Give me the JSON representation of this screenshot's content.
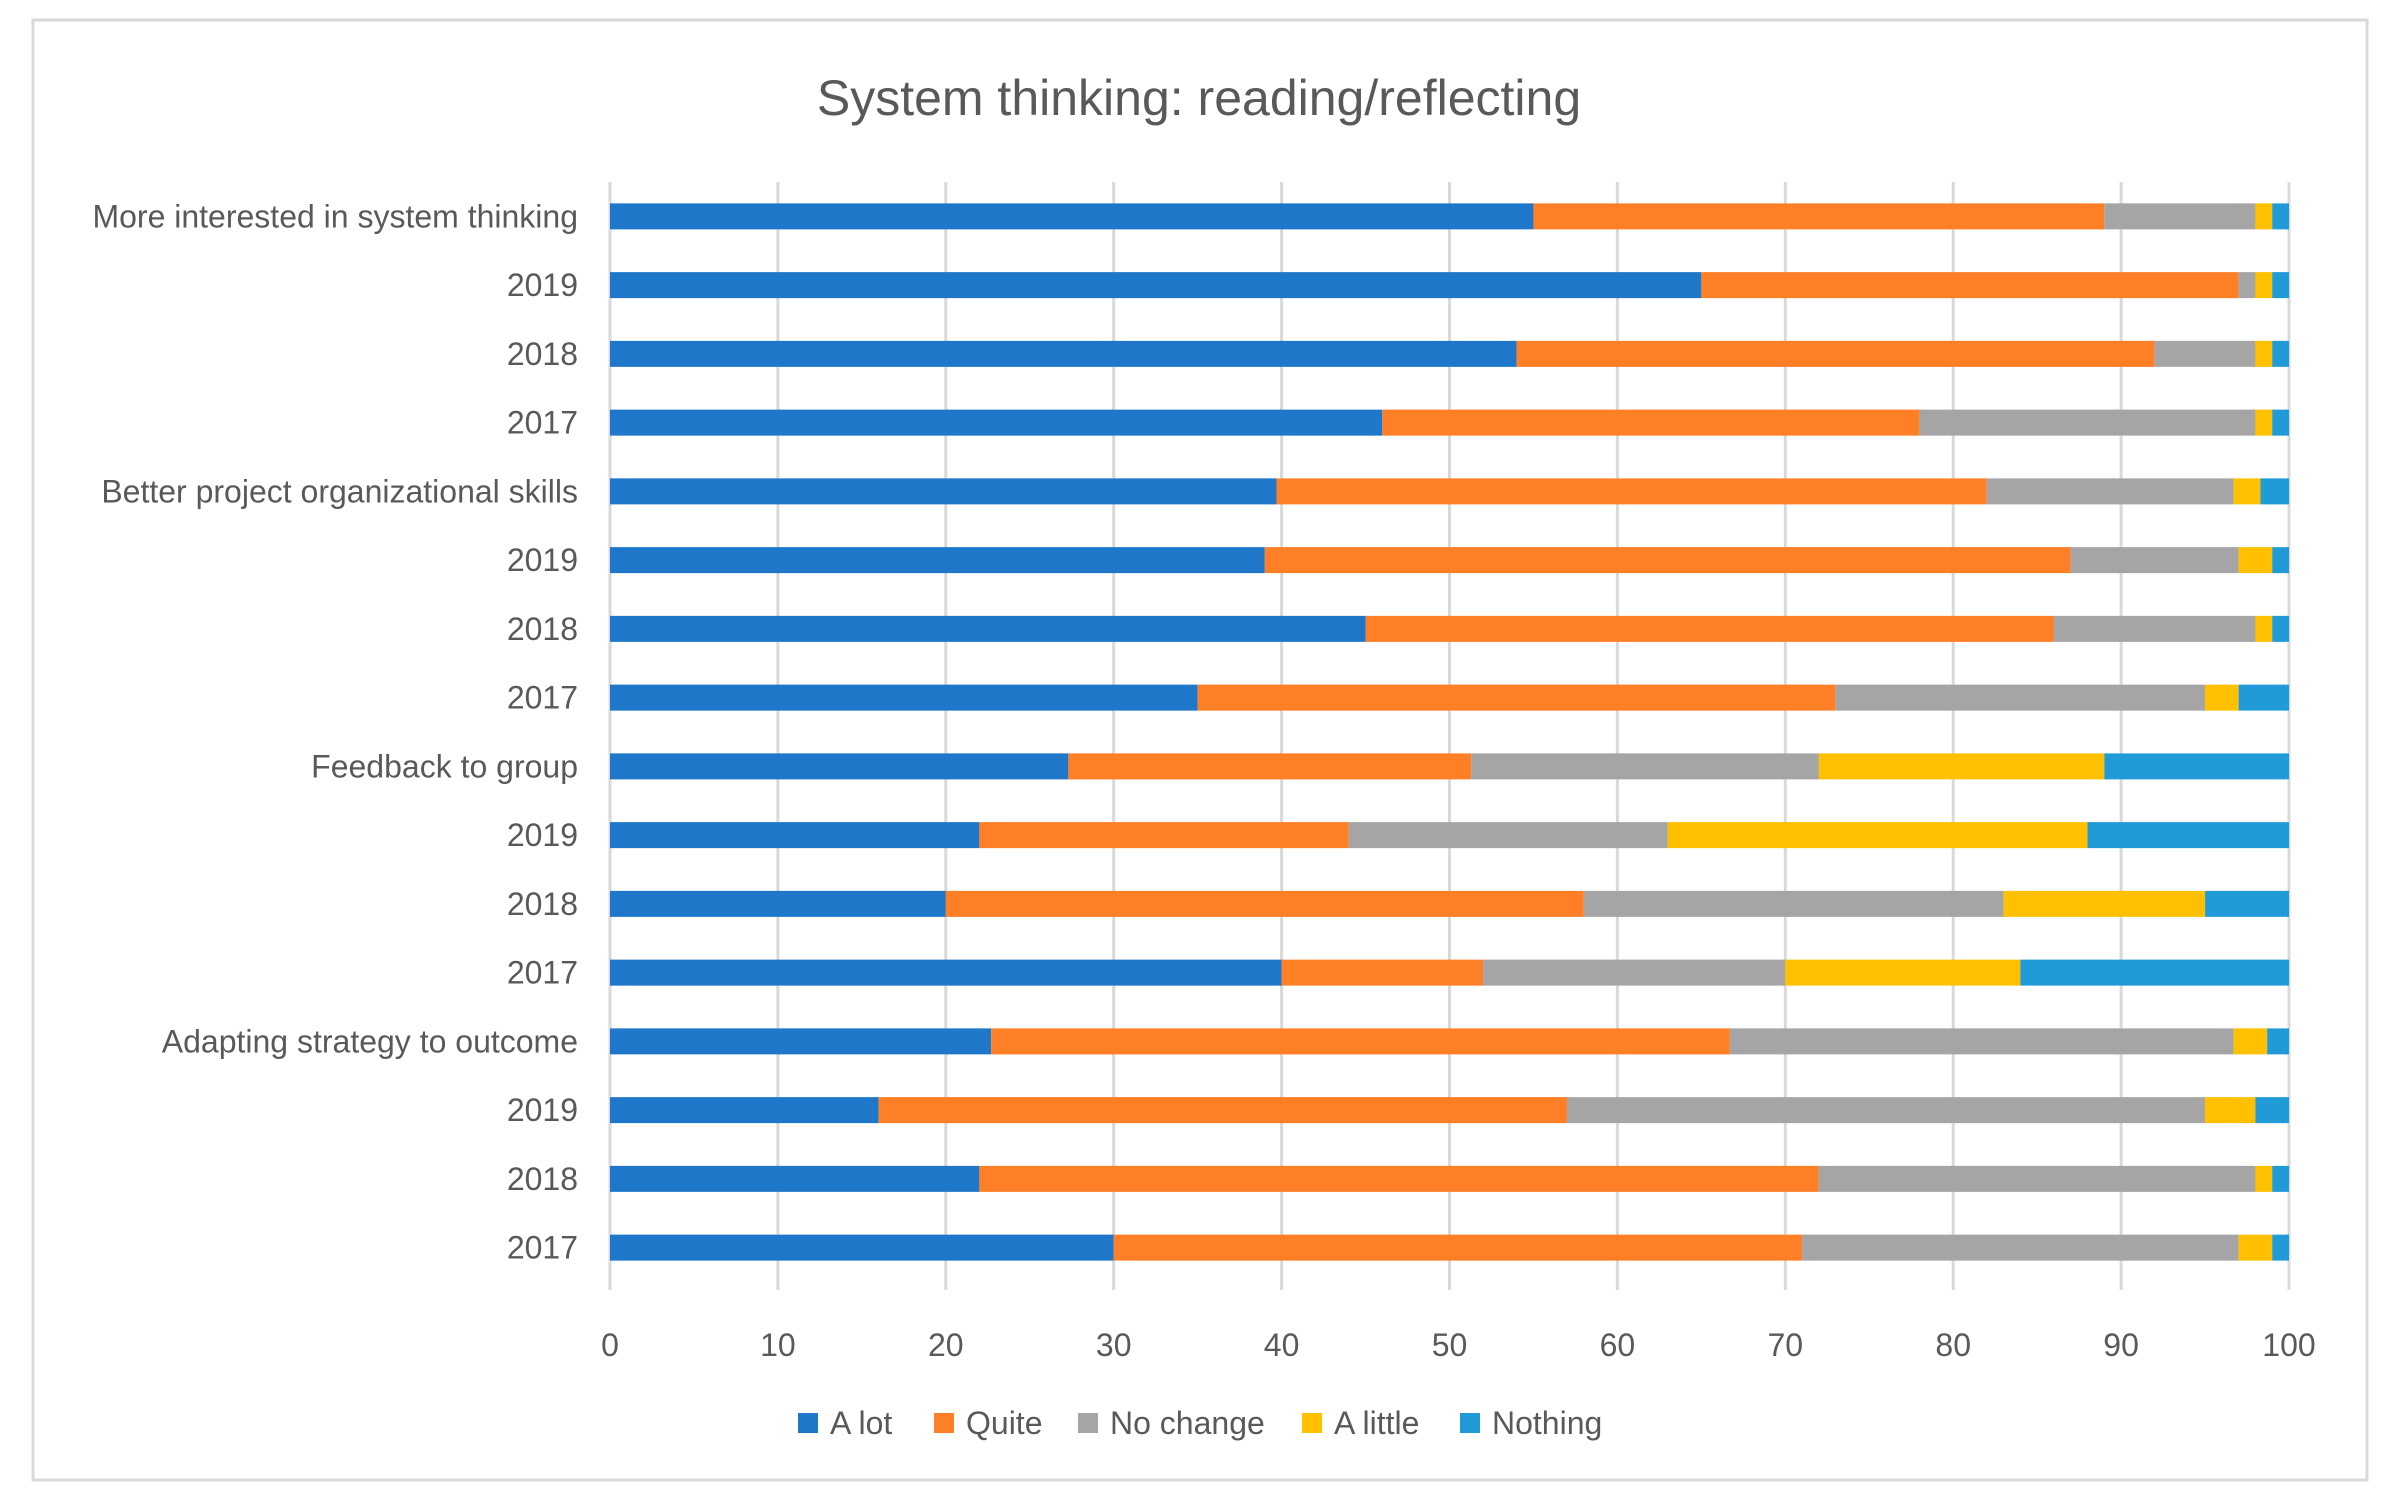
{
  "chart_data": {
    "type": "bar",
    "orientation": "horizontal",
    "stacked": true,
    "title": "System thinking: reading/reflecting",
    "xlabel": "",
    "ylabel": "",
    "xlim": [
      0,
      100
    ],
    "x_ticks": [
      "0",
      "10",
      "20",
      "30",
      "40",
      "50",
      "60",
      "70",
      "80",
      "90",
      "100"
    ],
    "grid": true,
    "legend_position": "bottom",
    "categories": [
      "More interested in system thinking",
      "2019",
      "2018",
      "2017",
      "Better project organizational skills",
      "2019",
      "2018",
      "2017",
      "Feedback to group",
      "2019",
      "2018",
      "2017",
      "Adapting strategy to outcome",
      "2019",
      "2018",
      "2017"
    ],
    "series": [
      {
        "name": "A lot",
        "color": "#1F77C9",
        "values": [
          55,
          65,
          54,
          46,
          39.7,
          39,
          45,
          35,
          27.3,
          22,
          20,
          40,
          22.7,
          16,
          22,
          30
        ]
      },
      {
        "name": "Quite",
        "color": "#FF7F27",
        "values": [
          34,
          32,
          38,
          32,
          42.3,
          48,
          41,
          38,
          24,
          22,
          38,
          12,
          44,
          41,
          50,
          41
        ]
      },
      {
        "name": "No change",
        "color": "#A5A5A5",
        "values": [
          9,
          1,
          6,
          20,
          14.7,
          10,
          12,
          22,
          20.7,
          19,
          25,
          18,
          30,
          38,
          26,
          26
        ]
      },
      {
        "name": "A little",
        "color": "#FFC000",
        "values": [
          1,
          1,
          1,
          1,
          1.6,
          2,
          1,
          2,
          17,
          25,
          12,
          14,
          2,
          3,
          1,
          2
        ]
      },
      {
        "name": "Nothing",
        "color": "#219BD8",
        "values": [
          1,
          1,
          1,
          1,
          1.7,
          1,
          1,
          3,
          11,
          12,
          5,
          16,
          1.3,
          2,
          1,
          1
        ]
      }
    ]
  }
}
